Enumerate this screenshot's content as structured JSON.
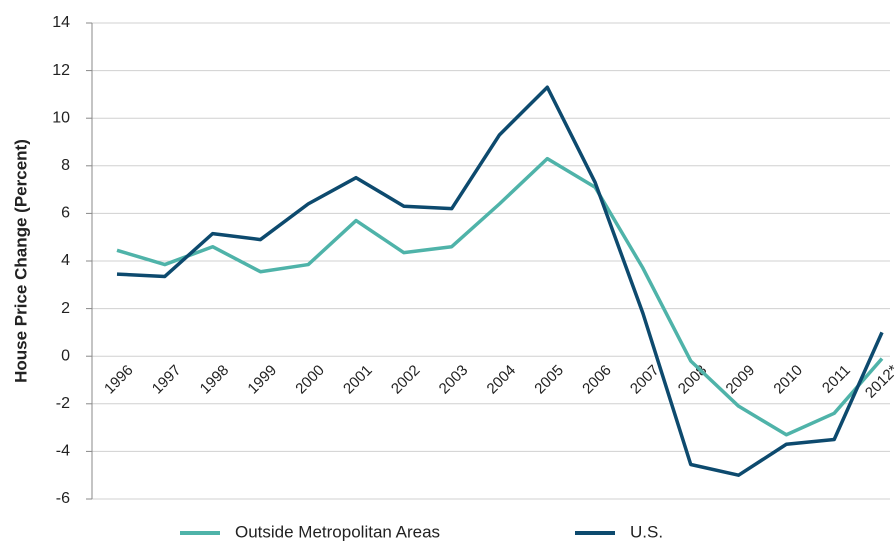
{
  "chart_data": {
    "type": "line",
    "y_label": "House Price Change (Percent)",
    "categories": [
      "1996",
      "1997",
      "1998",
      "1999",
      "2000",
      "2001",
      "2002",
      "2003",
      "2004",
      "2005",
      "2006",
      "2007",
      "2008",
      "2009",
      "2010",
      "2011",
      "2012*"
    ],
    "series": [
      {
        "name": "Outside Metropolitan Areas",
        "color": "#4fb3a9",
        "values": [
          4.45,
          3.85,
          4.6,
          3.55,
          3.85,
          5.7,
          4.35,
          4.6,
          6.4,
          8.3,
          7.1,
          3.7,
          -0.2,
          -2.1,
          -3.3,
          -2.4,
          -0.1
        ]
      },
      {
        "name": "U.S.",
        "color": "#0d4a6e",
        "values": [
          3.45,
          3.35,
          5.15,
          4.9,
          6.4,
          7.5,
          6.3,
          6.2,
          9.3,
          11.3,
          7.3,
          1.8,
          -4.55,
          -5.0,
          -3.7,
          -3.5,
          1.0
        ]
      }
    ],
    "ylim": [
      -6,
      14
    ],
    "yticks": [
      -6,
      -4,
      -2,
      0,
      2,
      4,
      6,
      8,
      10,
      12,
      14
    ],
    "grid": true,
    "legend": "bottom"
  }
}
